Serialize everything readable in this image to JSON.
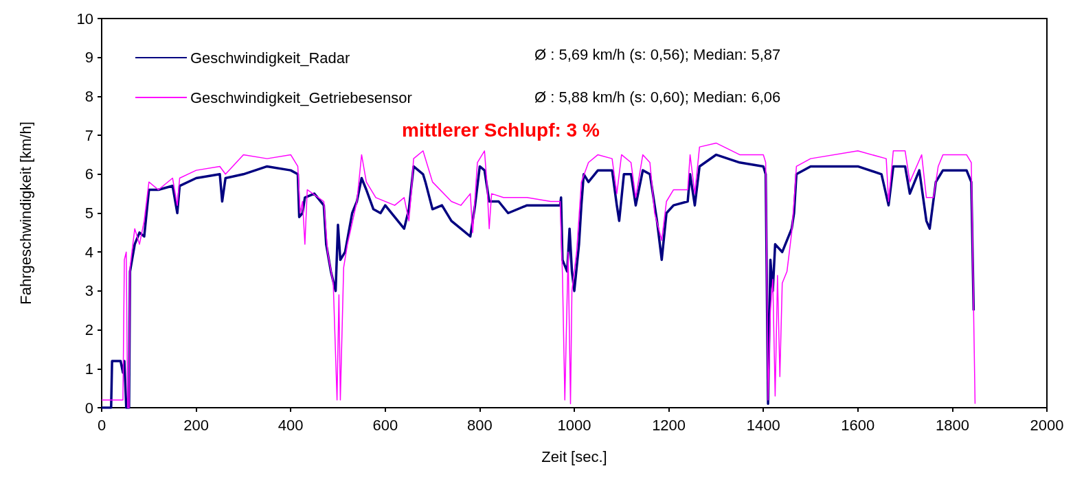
{
  "chart_data": {
    "type": "line",
    "xlabel": "Zeit [sec.]",
    "ylabel": "Fahrgeschwindigkeit [km/h]",
    "xlim": [
      0,
      2000
    ],
    "xticks": [
      0,
      200,
      400,
      600,
      800,
      1000,
      1200,
      1400,
      1600,
      1800,
      2000
    ],
    "ylim": [
      0,
      10
    ],
    "yticks": [
      0,
      1,
      2,
      3,
      4,
      5,
      6,
      7,
      8,
      9,
      10
    ],
    "legend": "top left",
    "marker": "none",
    "line_style": "solid",
    "annotations": [
      "Ø : 5,69 km/h (s: 0,56); Median: 5,87",
      "Ø : 5,88 km/h (s: 0,60); Median: 6,06",
      "mittlerer Schlupf: 3 %"
    ],
    "series": [
      {
        "name": "Geschwindigkeit_Radar",
        "color": "#000080",
        "x": [
          0,
          20,
          22,
          40,
          45,
          48,
          52,
          58,
          60,
          70,
          80,
          90,
          100,
          120,
          150,
          160,
          165,
          200,
          250,
          255,
          262,
          300,
          350,
          400,
          415,
          418,
          425,
          430,
          450,
          470,
          475,
          485,
          495,
          500,
          505,
          515,
          530,
          540,
          550,
          560,
          575,
          590,
          600,
          620,
          640,
          650,
          660,
          680,
          685,
          700,
          720,
          740,
          760,
          780,
          790,
          800,
          810,
          820,
          840,
          860,
          900,
          950,
          970,
          972,
          975,
          985,
          990,
          995,
          1000,
          1010,
          1015,
          1020,
          1030,
          1050,
          1080,
          1090,
          1095,
          1105,
          1120,
          1130,
          1145,
          1160,
          1175,
          1185,
          1195,
          1210,
          1240,
          1245,
          1255,
          1265,
          1300,
          1350,
          1400,
          1405,
          1410,
          1415,
          1420,
          1425,
          1440,
          1450,
          1460,
          1465,
          1470,
          1500,
          1600,
          1650,
          1665,
          1675,
          1700,
          1710,
          1730,
          1745,
          1752,
          1765,
          1780,
          1830,
          1840,
          1845
        ],
        "values": [
          0,
          0,
          1.2,
          1.2,
          0.9,
          1.2,
          0,
          0,
          3.5,
          4.2,
          4.5,
          4.4,
          5.6,
          5.6,
          5.7,
          5.0,
          5.7,
          5.9,
          6.0,
          5.3,
          5.9,
          6.0,
          6.2,
          6.1,
          6.0,
          4.9,
          5.0,
          5.4,
          5.5,
          5.2,
          4.2,
          3.5,
          3.0,
          4.7,
          3.8,
          4.0,
          5.0,
          5.3,
          5.9,
          5.6,
          5.1,
          5.0,
          5.2,
          4.9,
          4.6,
          5.1,
          6.2,
          6.0,
          5.8,
          5.1,
          5.2,
          4.8,
          4.6,
          4.4,
          5.2,
          6.2,
          6.1,
          5.3,
          5.3,
          5.0,
          5.2,
          5.2,
          5.2,
          5.4,
          3.8,
          3.5,
          4.6,
          3.5,
          3.0,
          4.2,
          5.2,
          6.0,
          5.8,
          6.1,
          6.1,
          5.2,
          4.8,
          6.0,
          6.0,
          5.2,
          6.1,
          6.0,
          4.8,
          3.8,
          5.0,
          5.2,
          5.3,
          6.0,
          5.2,
          6.2,
          6.5,
          6.3,
          6.2,
          6.0,
          0.1,
          3.8,
          3.0,
          4.2,
          4.0,
          4.3,
          4.6,
          5.0,
          6.0,
          6.2,
          6.2,
          6.0,
          5.2,
          6.2,
          6.2,
          5.5,
          6.1,
          4.8,
          4.6,
          5.8,
          6.1,
          6.1,
          5.8,
          2.5
        ]
      },
      {
        "name": "Geschwindigkeit_Getriebesensor",
        "color": "#ff00ff",
        "x": [
          0,
          45,
          48,
          52,
          55,
          58,
          60,
          70,
          80,
          90,
          100,
          120,
          150,
          160,
          165,
          200,
          250,
          262,
          300,
          350,
          400,
          415,
          420,
          425,
          430,
          435,
          470,
          478,
          490,
          498,
          502,
          505,
          512,
          520,
          540,
          550,
          560,
          580,
          620,
          640,
          650,
          655,
          660,
          680,
          700,
          740,
          760,
          780,
          785,
          795,
          810,
          815,
          820,
          825,
          850,
          900,
          950,
          970,
          975,
          980,
          987,
          992,
          995,
          1005,
          1015,
          1030,
          1050,
          1080,
          1090,
          1100,
          1120,
          1130,
          1145,
          1160,
          1170,
          1185,
          1195,
          1210,
          1240,
          1245,
          1255,
          1265,
          1300,
          1350,
          1400,
          1405,
          1410,
          1415,
          1420,
          1425,
          1430,
          1435,
          1440,
          1450,
          1460,
          1465,
          1470,
          1500,
          1600,
          1660,
          1665,
          1675,
          1700,
          1710,
          1735,
          1745,
          1760,
          1770,
          1780,
          1830,
          1840,
          1848
        ],
        "values": [
          0.2,
          0.2,
          3.8,
          4.0,
          0,
          0,
          3.6,
          4.6,
          4.2,
          4.8,
          5.8,
          5.6,
          5.9,
          5.2,
          5.9,
          6.1,
          6.2,
          6.0,
          6.5,
          6.4,
          6.5,
          6.2,
          5.0,
          5.3,
          4.2,
          5.6,
          5.3,
          4.0,
          3.2,
          0.2,
          2.9,
          0.2,
          3.6,
          4.2,
          5.3,
          6.5,
          5.8,
          5.4,
          5.2,
          5.4,
          4.8,
          5.5,
          6.4,
          6.6,
          5.8,
          5.3,
          5.2,
          5.5,
          4.5,
          6.3,
          6.6,
          5.8,
          4.6,
          5.5,
          5.4,
          5.4,
          5.3,
          5.3,
          3.4,
          0.2,
          4.0,
          0.1,
          3.0,
          4.0,
          5.8,
          6.3,
          6.5,
          6.4,
          5.5,
          6.5,
          6.3,
          5.4,
          6.5,
          6.3,
          5.0,
          4.3,
          5.3,
          5.6,
          5.6,
          6.5,
          5.5,
          6.7,
          6.8,
          6.5,
          6.5,
          6.3,
          0.2,
          2.5,
          3.3,
          0.3,
          3.4,
          0.8,
          3.2,
          3.5,
          4.5,
          5.3,
          6.2,
          6.4,
          6.6,
          6.4,
          5.3,
          6.6,
          6.6,
          5.8,
          6.5,
          5.4,
          5.4,
          6.2,
          6.5,
          6.5,
          6.3,
          0.1
        ]
      }
    ]
  }
}
